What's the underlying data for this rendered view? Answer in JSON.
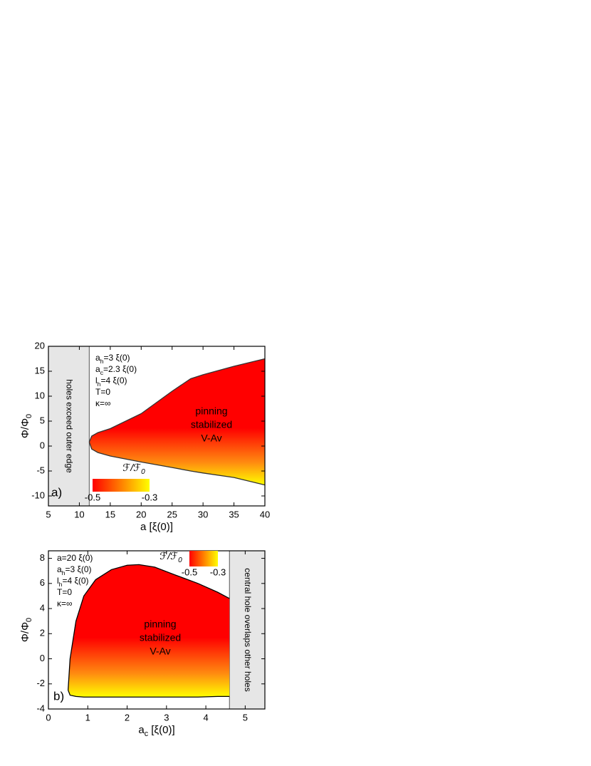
{
  "chart_data": [
    {
      "type": "region",
      "panel_label": "a)",
      "xlabel": [
        {
          "text": "a [ξ(0)]"
        }
      ],
      "ylabel": [
        {
          "text": "Φ/Φ"
        },
        {
          "text": "0",
          "sub": true
        }
      ],
      "xlim": [
        5,
        40
      ],
      "ylim": [
        -12,
        20
      ],
      "xticks": [
        5,
        10,
        15,
        20,
        25,
        30,
        35,
        40
      ],
      "yticks": [
        -10,
        -5,
        0,
        5,
        10,
        15,
        20
      ],
      "x": [
        11.6,
        12,
        13,
        15,
        20,
        25,
        28,
        30,
        35,
        40
      ],
      "series": [
        {
          "values": [
            0.8,
            2,
            2.7,
            3.5,
            6.5,
            11,
            13.5,
            14.3,
            16,
            17.5
          ]
        },
        {
          "values": [
            0.8,
            -0.6,
            -1.3,
            -2,
            -3.2,
            -4.3,
            -5,
            -5.4,
            -6.3,
            -7.8
          ]
        }
      ],
      "excluded_region": {
        "xlim": [
          5,
          11.6
        ],
        "label": "holes exceed outer edge",
        "color": "#e6e6e6"
      },
      "annotations": [
        [
          {
            "text": "a"
          },
          {
            "text": "h",
            "sub": true
          },
          {
            "text": "=3 ξ(0)"
          }
        ],
        [
          {
            "text": "a"
          },
          {
            "text": "c",
            "sub": true
          },
          {
            "text": "=2.3 ξ(0)"
          }
        ],
        [
          {
            "text": "l"
          },
          {
            "text": "h",
            "sub": true
          },
          {
            "text": "=4 ξ(0)"
          }
        ],
        [
          {
            "text": "T=0"
          }
        ],
        [
          {
            "text": "κ=∞"
          }
        ]
      ],
      "region_label": [
        "pinning",
        "stabilized",
        "V-Av"
      ],
      "colorbar": {
        "label": [
          {
            "text": "ℱ/ℱ"
          },
          {
            "text": "0",
            "sub": true
          }
        ],
        "ticks": [
          -0.5,
          -0.3
        ],
        "colors": [
          "#ff0000",
          "#ffff00"
        ]
      },
      "line_color": "#333333"
    },
    {
      "type": "region",
      "panel_label": "b)",
      "xlabel": [
        {
          "text": "a"
        },
        {
          "text": "c",
          "sub": true
        },
        {
          "text": " [ξ(0)]"
        }
      ],
      "ylabel": [
        {
          "text": "Φ/Φ"
        },
        {
          "text": "0",
          "sub": true
        }
      ],
      "xlim": [
        0,
        5.5
      ],
      "ylim": [
        -4,
        8.6
      ],
      "xticks": [
        0,
        1,
        2,
        3,
        4,
        5
      ],
      "yticks": [
        -4,
        -2,
        0,
        2,
        4,
        6,
        8
      ],
      "x": [
        0.5,
        0.55,
        0.7,
        0.9,
        1.2,
        1.6,
        2.0,
        2.3,
        2.7,
        3.2,
        3.8,
        4.3,
        4.6
      ],
      "series": [
        {
          "values": [
            -2.5,
            0,
            3,
            5,
            6.3,
            7.1,
            7.45,
            7.5,
            7.3,
            6.7,
            6.0,
            5.3,
            4.8
          ]
        },
        {
          "values": [
            -2.5,
            -2.9,
            -3.0,
            -3.05,
            -3.05,
            -3.05,
            -3.05,
            -3.05,
            -3.05,
            -3.05,
            -3.05,
            -3.0,
            -3.0
          ]
        }
      ],
      "excluded_region": {
        "xlim": [
          4.6,
          5.5
        ],
        "label": "central hole overlaps other holes",
        "color": "#e6e6e6"
      },
      "annotations": [
        [
          {
            "text": "a=20 ξ(0)"
          }
        ],
        [
          {
            "text": "a"
          },
          {
            "text": "h",
            "sub": true
          },
          {
            "text": "=3 ξ(0)"
          }
        ],
        [
          {
            "text": "l"
          },
          {
            "text": "h",
            "sub": true
          },
          {
            "text": "=4 ξ(0)"
          }
        ],
        [
          {
            "text": "T=0"
          }
        ],
        [
          {
            "text": "κ=∞"
          }
        ]
      ],
      "region_label": [
        "pinning",
        "stabilized",
        "V-Av"
      ],
      "colorbar": {
        "label": [
          {
            "text": "ℱ/ℱ"
          },
          {
            "text": "0",
            "sub": true
          }
        ],
        "ticks": [
          -0.5,
          -0.3
        ],
        "colors": [
          "#ff0000",
          "#ffff00"
        ]
      },
      "line_color": "#000000"
    }
  ]
}
